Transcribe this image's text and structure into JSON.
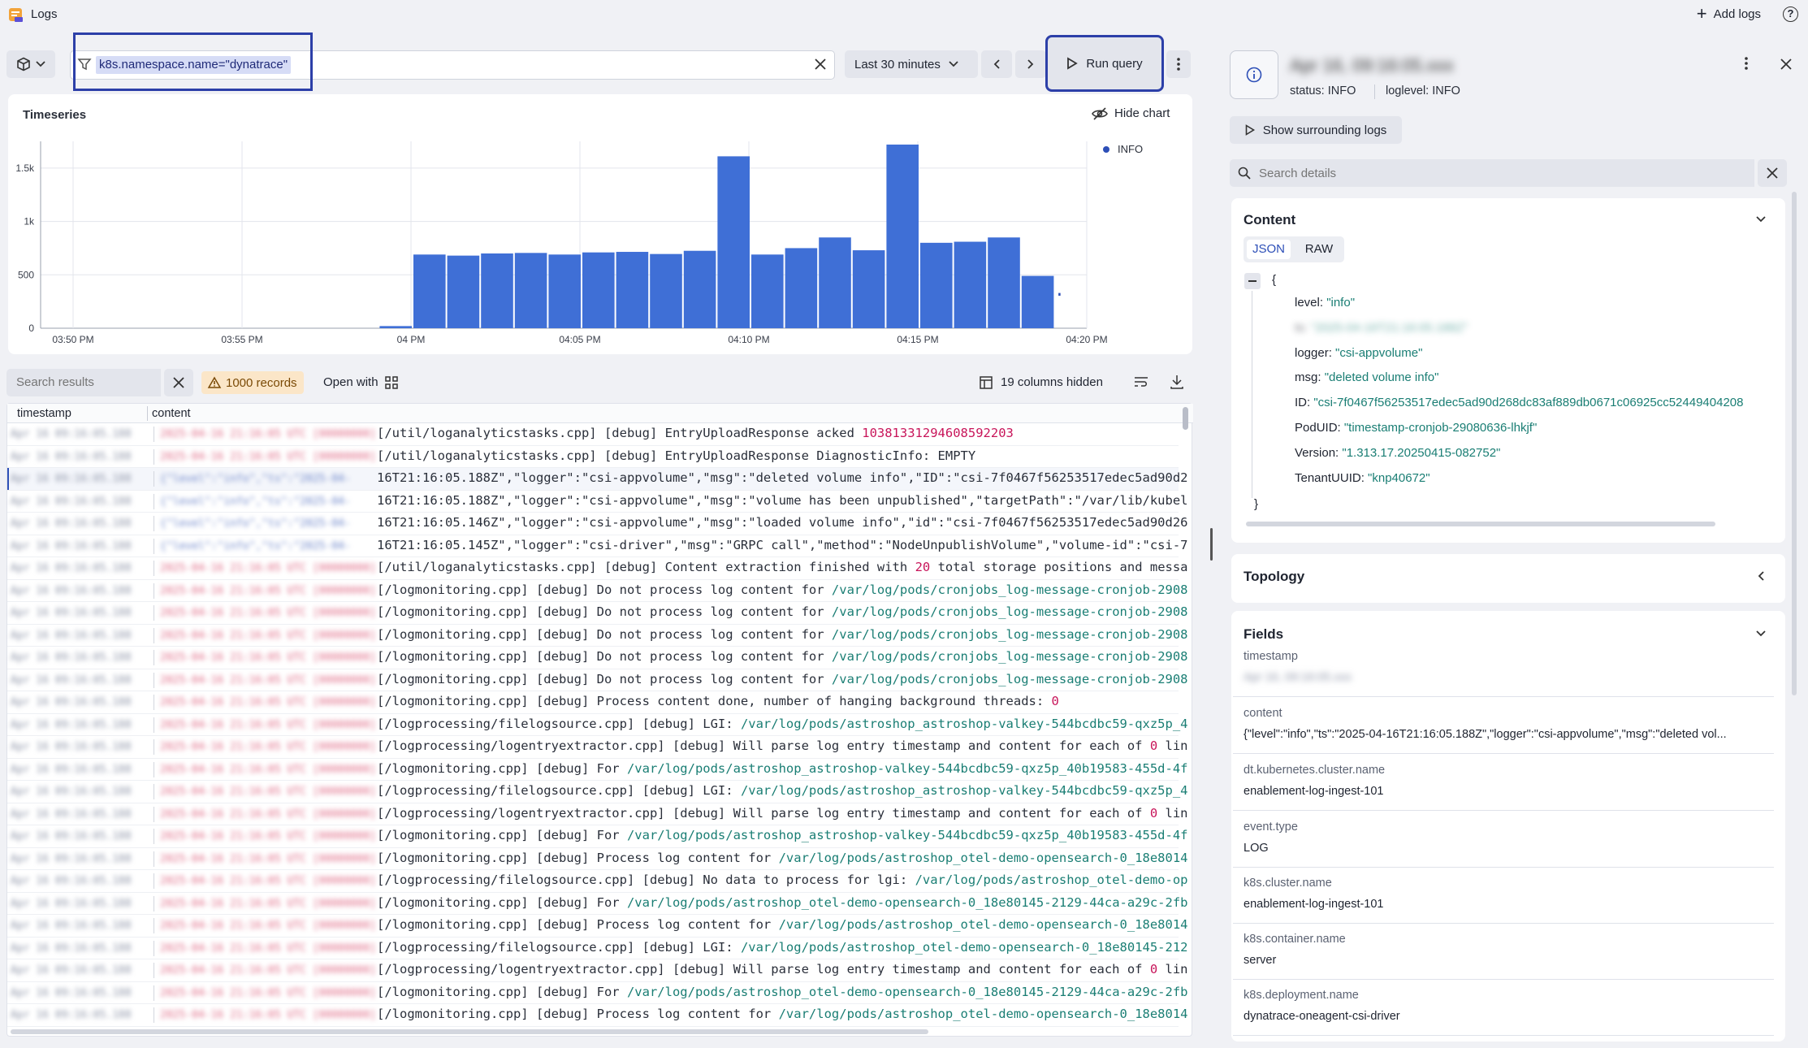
{
  "app": {
    "title": "Logs",
    "add_logs": "Add logs",
    "help": "?"
  },
  "toolbar": {
    "query": "k8s.namespace.name=\"dynatrace\"",
    "timeframe": "Last 30 minutes",
    "run_query": "Run query"
  },
  "timeseries": {
    "title": "Timeseries",
    "hide_chart": "Hide chart"
  },
  "chart_data": {
    "type": "bar",
    "legend": "INFO",
    "color": "#3f6fd6",
    "y_ticks": [
      "1.5k",
      "1k",
      "500",
      "0"
    ],
    "y_tick_values": [
      1500,
      1000,
      500,
      0
    ],
    "x_ticks": [
      "03:50 PM",
      "03:55 PM",
      "04 PM",
      "04:05 PM",
      "04:10 PM",
      "04:15 PM",
      "04:20 PM"
    ],
    "ylim": [
      0,
      1750
    ],
    "values": [
      20,
      690,
      680,
      700,
      705,
      690,
      710,
      715,
      695,
      725,
      1610,
      690,
      750,
      850,
      730,
      1720,
      800,
      810,
      850,
      490
    ],
    "partial_value": 330
  },
  "results": {
    "search_placeholder": "Search results",
    "records": "1000 records",
    "open_with": "Open with",
    "hidden_cols": "19 columns hidden",
    "col_timestamp": "timestamp",
    "col_content": "content",
    "rows": [
      {
        "p": "[/util/loganalyticstasks.cpp] [debug] EntryUploadResponse acked ",
        "n": "10381331294608592203",
        "t": ""
      },
      {
        "p": "[/util/loganalyticstasks.cpp] [debug] EntryUploadResponse DiagnosticInfo: EMPTY",
        "n": "",
        "t": ""
      },
      {
        "p": "16T21:16:05.188Z\",\"logger\":\"csi-appvolume\",\"msg\":\"deleted volume info\",\"ID\":\"csi-7f0467f56253517edec5ad90d2",
        "n": "",
        "t": ""
      },
      {
        "p": "16T21:16:05.188Z\",\"logger\":\"csi-appvolume\",\"msg\":\"volume has been unpublished\",\"targetPath\":\"/var/lib/kubel",
        "n": "",
        "t": ""
      },
      {
        "p": "16T21:16:05.146Z\",\"logger\":\"csi-appvolume\",\"msg\":\"loaded volume info\",\"id\":\"csi-7f0467f56253517edec5ad90d26",
        "n": "",
        "t": ""
      },
      {
        "p": "16T21:16:05.145Z\",\"logger\":\"csi-driver\",\"msg\":\"GRPC call\",\"method\":\"NodeUnpublishVolume\",\"volume-id\":\"csi-7",
        "n": "",
        "t": ""
      },
      {
        "p": "[/util/loganalyticstasks.cpp] [debug] Content extraction finished with ",
        "n": "20",
        "t": " total storage positions and messa"
      },
      {
        "p": "[/logmonitoring.cpp] [debug] Do not process log content for /var/log/pods/cronjobs_log-message-cronjob-2908",
        "n": "",
        "t": ""
      },
      {
        "p": "[/logmonitoring.cpp] [debug] Do not process log content for /var/log/pods/cronjobs_log-message-cronjob-2908",
        "n": "",
        "t": ""
      },
      {
        "p": "[/logmonitoring.cpp] [debug] Do not process log content for /var/log/pods/cronjobs_log-message-cronjob-2908",
        "n": "",
        "t": ""
      },
      {
        "p": "[/logmonitoring.cpp] [debug] Do not process log content for /var/log/pods/cronjobs_log-message-cronjob-2908",
        "n": "",
        "t": ""
      },
      {
        "p": "[/logmonitoring.cpp] [debug] Do not process log content for /var/log/pods/cronjobs_log-message-cronjob-2908",
        "n": "",
        "t": ""
      },
      {
        "p": "[/logmonitoring.cpp] [debug] Process content done, number of hanging background threads: ",
        "n": "0",
        "t": ""
      },
      {
        "p": "[/logprocessing/filelogsource.cpp] [debug] LGI: /var/log/pods/astroshop_astroshop-valkey-544bcdbc59-qxz5p_4",
        "n": "",
        "t": ""
      },
      {
        "p": "[/logprocessing/logentryextractor.cpp] [debug] Will parse log entry timestamp and content for each of ",
        "n": "0",
        "t": " lin"
      },
      {
        "p": "[/logmonitoring.cpp] [debug] For /var/log/pods/astroshop_astroshop-valkey-544bcdbc59-qxz5p_40b19583-455d-4f",
        "n": "",
        "t": ""
      },
      {
        "p": "[/logprocessing/filelogsource.cpp] [debug] LGI: /var/log/pods/astroshop_astroshop-valkey-544bcdbc59-qxz5p_4",
        "n": "",
        "t": ""
      },
      {
        "p": "[/logprocessing/logentryextractor.cpp] [debug] Will parse log entry timestamp and content for each of ",
        "n": "0",
        "t": " lin"
      },
      {
        "p": "[/logmonitoring.cpp] [debug] For /var/log/pods/astroshop_astroshop-valkey-544bcdbc59-qxz5p_40b19583-455d-4f",
        "n": "",
        "t": ""
      },
      {
        "p": "[/logmonitoring.cpp] [debug] Process log content for /var/log/pods/astroshop_otel-demo-opensearch-0_18e8014",
        "n": "",
        "t": ""
      },
      {
        "p": "[/logprocessing/filelogsource.cpp] [debug] No data to process for lgi: /var/log/pods/astroshop_otel-demo-op",
        "n": "",
        "t": ""
      },
      {
        "p": "[/logmonitoring.cpp] [debug] For /var/log/pods/astroshop_otel-demo-opensearch-0_18e80145-2129-44ca-a29c-2fb",
        "n": "",
        "t": ""
      },
      {
        "p": "[/logmonitoring.cpp] [debug] Process log content for /var/log/pods/astroshop_otel-demo-opensearch-0_18e8014",
        "n": "",
        "t": ""
      },
      {
        "p": "[/logprocessing/filelogsource.cpp] [debug] LGI: /var/log/pods/astroshop_otel-demo-opensearch-0_18e80145-212",
        "n": "",
        "t": ""
      },
      {
        "p": "[/logprocessing/logentryextractor.cpp] [debug] Will parse log entry timestamp and content for each of ",
        "n": "0",
        "t": " lin"
      },
      {
        "p": "[/logmonitoring.cpp] [debug] For /var/log/pods/astroshop_otel-demo-opensearch-0_18e80145-2129-44ca-a29c-2fb",
        "n": "",
        "t": ""
      },
      {
        "p": "[/logmonitoring.cpp] [debug] Process log content for /var/log/pods/astroshop_otel-demo-opensearch-0_18e8014",
        "n": "",
        "t": ""
      }
    ]
  },
  "detail": {
    "title_blurred": "Apr 16, 09:16:05.xxx",
    "status": "status: INFO",
    "loglevel": "loglevel: INFO",
    "surrounding": "Show surrounding logs",
    "search_placeholder": "Search details",
    "content_title": "Content",
    "tab_json": "JSON",
    "tab_raw": "RAW",
    "json_open": "{",
    "json_close": "}",
    "json": [
      {
        "k": "level: ",
        "v": "\"info\""
      },
      {
        "k": "ts: ",
        "v": "\"2025-04-16T21:16:05.188Z\"",
        "blur": true
      },
      {
        "k": "logger: ",
        "v": "\"csi-appvolume\""
      },
      {
        "k": "msg: ",
        "v": "\"deleted volume info\""
      },
      {
        "k": "ID: ",
        "v": "\"csi-7f0467f56253517edec5ad90d268dc83af889db0671c06925cc52449404208"
      },
      {
        "k": "PodUID: ",
        "v": "\"timestamp-cronjob-29080636-lhkjf\""
      },
      {
        "k": "Version: ",
        "v": "\"1.313.17.20250415-082752\""
      },
      {
        "k": "TenantUUID: ",
        "v": "\"knp40672\""
      }
    ],
    "topology_title": "Topology",
    "fields_title": "Fields",
    "fields": [
      {
        "label": "timestamp",
        "value": "Apr 16, 09:16:05.xxx",
        "blur": true
      },
      {
        "label": "content",
        "value": "{\"level\":\"info\",\"ts\":\"2025-04-16T21:16:05.188Z\",\"logger\":\"csi-appvolume\",\"msg\":\"deleted vol..."
      },
      {
        "label": "dt.kubernetes.cluster.name",
        "value": "enablement-log-ingest-101"
      },
      {
        "label": "event.type",
        "value": "LOG"
      },
      {
        "label": "k8s.cluster.name",
        "value": "enablement-log-ingest-101"
      },
      {
        "label": "k8s.container.name",
        "value": "server"
      },
      {
        "label": "k8s.deployment.name",
        "value": "dynatrace-oneagent-csi-driver"
      }
    ]
  }
}
